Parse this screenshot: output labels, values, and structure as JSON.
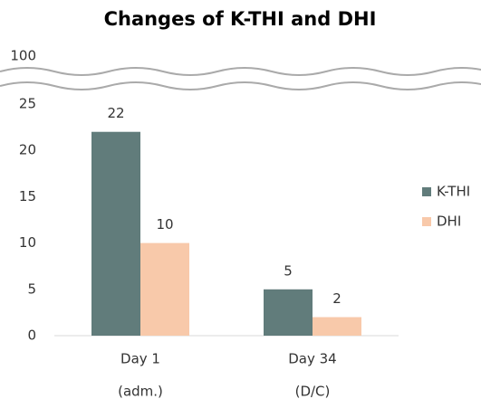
{
  "chart_data": {
    "type": "bar",
    "title": "Changes of K-THI and DHI",
    "categories": [
      [
        "Day 1",
        "(adm.)"
      ],
      [
        "Day 34",
        "(D/C)"
      ]
    ],
    "series": [
      {
        "name": "K-THI",
        "color": "#617c7b",
        "values": [
          22,
          5
        ]
      },
      {
        "name": "DHI",
        "color": "#f8c9aa",
        "values": [
          10,
          2
        ]
      }
    ],
    "ylim": [
      0,
      100
    ],
    "axis_break": [
      25,
      100
    ],
    "yticks": [
      0,
      5,
      10,
      15,
      20,
      25,
      100
    ],
    "grid": false,
    "legend": "right"
  }
}
